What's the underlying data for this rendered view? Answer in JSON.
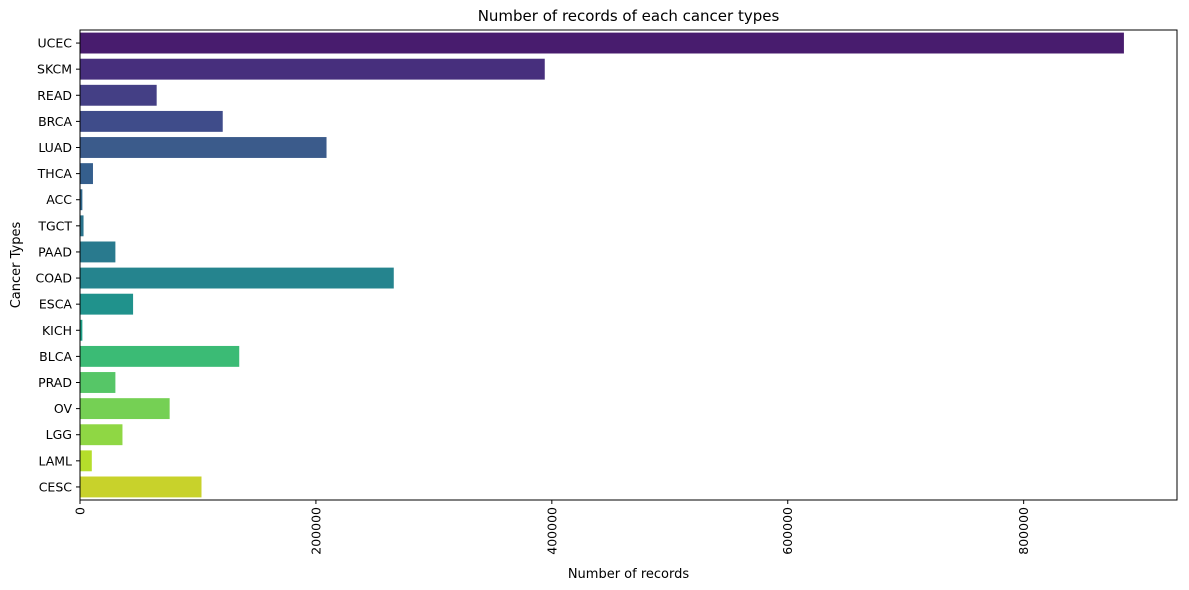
{
  "chart_data": {
    "type": "bar",
    "orientation": "horizontal",
    "title": "Number of records of each cancer types",
    "xlabel": "Number of records",
    "ylabel": "Cancer Types",
    "xlim": [
      0,
      930000
    ],
    "xticks": [
      0,
      200000,
      400000,
      600000,
      800000
    ],
    "xtick_labels": [
      "0",
      "200000",
      "400000",
      "600000",
      "800000"
    ],
    "xtick_rotation": "vertical",
    "grid": false,
    "legend": "none",
    "palette": "viridis",
    "categories": [
      "UCEC",
      "SKCM",
      "READ",
      "BRCA",
      "LUAD",
      "THCA",
      "ACC",
      "TGCT",
      "PAAD",
      "COAD",
      "ESCA",
      "KICH",
      "BLCA",
      "PRAD",
      "OV",
      "LGG",
      "LAML",
      "CESC"
    ],
    "values": [
      885000,
      394000,
      65000,
      121000,
      209000,
      11000,
      2000,
      3000,
      30000,
      266000,
      45000,
      2000,
      135000,
      30000,
      76000,
      36000,
      10000,
      103000
    ],
    "colors": [
      "#481c6e",
      "#472f7d",
      "#443f85",
      "#3f4c8a",
      "#3b5b8b",
      "#355f8d",
      "#30698e",
      "#2b758e",
      "#297a8e",
      "#25848e",
      "#20928c",
      "#1fa188",
      "#3bbb75",
      "#56c667",
      "#75d054",
      "#8fd744",
      "#b5de2b",
      "#c8d22b"
    ]
  }
}
